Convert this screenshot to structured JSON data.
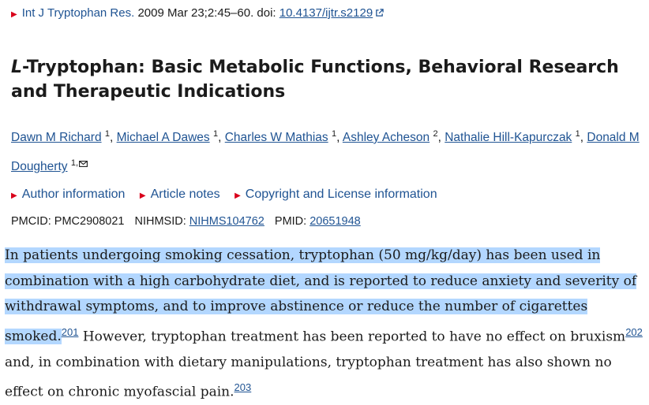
{
  "citation": {
    "journal": "Int J Tryptophan Res.",
    "date_pages": "2009 Mar 23;2:45–60. doi: ",
    "doi": "10.4137/ijtr.s2129"
  },
  "title_italic": "L",
  "title_rest": "-Tryptophan: Basic Metabolic Functions, Behavioral Research and Therapeutic Indications",
  "authors": [
    {
      "name": "Dawn M Richard",
      "aff": "1"
    },
    {
      "name": "Michael A Dawes",
      "aff": "1"
    },
    {
      "name": "Charles W Mathias",
      "aff": "1"
    },
    {
      "name": "Ashley Acheson",
      "aff": "2"
    },
    {
      "name": "Nathalie Hill-Kapurczak",
      "aff": "1"
    },
    {
      "name": "Donald M Dougherty",
      "aff": "1,"
    }
  ],
  "meta_links": [
    "Author information",
    "Article notes",
    "Copyright and License information"
  ],
  "ids": {
    "pmcid_label": "PMCID: PMC2908021",
    "nihmsid_label": "NIHMSID:",
    "nihmsid": "NIHMS104762",
    "pmid_label": "PMID:",
    "pmid": "20651948"
  },
  "paragraph": {
    "highlighted": "In patients undergoing smoking cessation, tryptophan (50 mg/kg/day) has been used in combination with a high carbohydrate diet, and is reported to reduce anxiety and severity of withdrawal symptoms, and to improve abstinence or reduce the number of cigarettes smoked.",
    "ref1": "201",
    "part2": " However, tryptophan treatment has been reported to have no effect on bruxism",
    "ref2": "202",
    "part3": " and, in combination with dietary manipulations, tryptophan treatment has also shown no effect on chronic myofascial pain.",
    "ref3": "203"
  },
  "colors": {
    "link": "#205493",
    "bullet": "#d9001b",
    "highlight": "#b3d7ff"
  }
}
